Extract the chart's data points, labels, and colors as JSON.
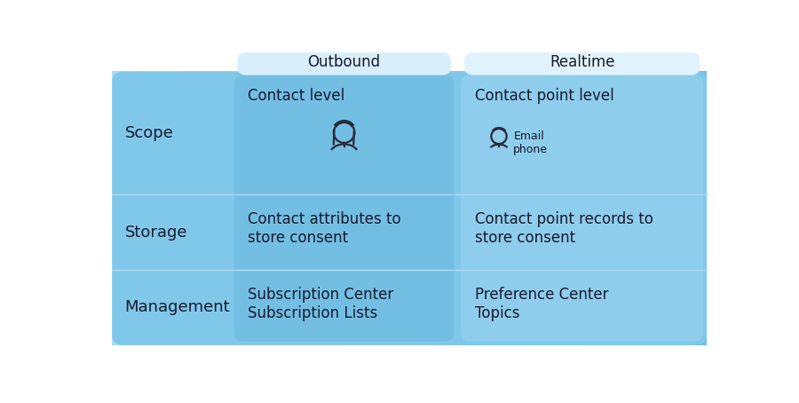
{
  "bg_color": "#ffffff",
  "table_bg": "#7ec8ea",
  "outbound_tab_color": "#d6eefc",
  "realtime_tab_color": "#daf0fb",
  "outbound_col_color": "#82c8e8",
  "realtime_col_color": "#b8dff2",
  "header_outbound": "Outbound",
  "header_realtime": "Realtime",
  "row_labels": [
    "Scope",
    "Storage",
    "Management"
  ],
  "outbound_values": [
    "Contact level",
    "Contact attributes to\nstore consent",
    "Subscription Center\nSubscription Lists"
  ],
  "realtime_values": [
    "Contact point level",
    "Contact point records to\nstore consent",
    "Preference Center\nTopics"
  ],
  "realtime_scope_extra": "Email\nphone",
  "text_color": "#1a1a2e",
  "divider_color": "#b0d8f0",
  "font_size_header": 12,
  "font_size_label": 13,
  "font_size_value": 12,
  "icon_color": "#2a2a3a"
}
